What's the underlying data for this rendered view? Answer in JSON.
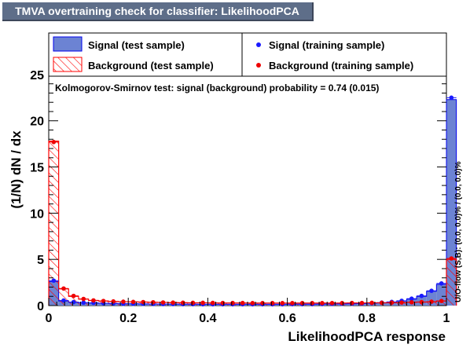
{
  "window": {
    "title": "TMVA overtraining check for classifier: LikelihoodPCA"
  },
  "chart_data": {
    "type": "bar",
    "title": "TMVA overtraining check for classifier: LikelihoodPCA",
    "xlabel": "LikelihoodPCA response",
    "ylabel": "(1/N) dN / dx",
    "xlim": [
      0,
      1
    ],
    "ylim": [
      0,
      29.5
    ],
    "xticks": [
      "0",
      "0.2",
      "0.4",
      "0.6",
      "0.8",
      "1"
    ],
    "yticks": [
      "0",
      "5",
      "10",
      "15",
      "20",
      "25"
    ],
    "bin_edges_start": 0,
    "bin_width": 0.025,
    "series": [
      {
        "name": "Signal (test sample)",
        "style": "filled histogram",
        "color": "#6c83d3",
        "values": [
          2.6,
          0.5,
          0.35,
          0.3,
          0.28,
          0.25,
          0.22,
          0.2,
          0.2,
          0.18,
          0.17,
          0.16,
          0.15,
          0.15,
          0.15,
          0.14,
          0.14,
          0.14,
          0.14,
          0.14,
          0.14,
          0.14,
          0.14,
          0.14,
          0.15,
          0.15,
          0.15,
          0.16,
          0.17,
          0.18,
          0.2,
          0.22,
          0.25,
          0.3,
          0.38,
          0.5,
          0.7,
          1.0,
          1.55,
          2.3,
          22.3
        ]
      },
      {
        "name": "Background (test sample)",
        "style": "hatched histogram",
        "color": "#ff0000",
        "values": [
          17.8,
          1.8,
          1.0,
          0.7,
          0.55,
          0.5,
          0.45,
          0.42,
          0.4,
          0.38,
          0.35,
          0.34,
          0.32,
          0.31,
          0.3,
          0.3,
          0.29,
          0.28,
          0.28,
          0.28,
          0.27,
          0.27,
          0.27,
          0.27,
          0.27,
          0.27,
          0.27,
          0.27,
          0.27,
          0.27,
          0.28,
          0.28,
          0.3,
          0.3,
          0.32,
          0.33,
          0.35,
          0.38,
          0.4,
          0.5,
          5.0
        ]
      },
      {
        "name": "Signal (training sample)",
        "style": "markers",
        "color": "#1a1aff",
        "values": [
          2.7,
          0.55,
          0.38,
          0.32,
          0.3,
          0.25,
          0.23,
          0.2,
          0.2,
          0.18,
          0.17,
          0.16,
          0.16,
          0.15,
          0.15,
          0.14,
          0.14,
          0.14,
          0.14,
          0.14,
          0.14,
          0.14,
          0.14,
          0.14,
          0.15,
          0.15,
          0.15,
          0.16,
          0.17,
          0.18,
          0.2,
          0.22,
          0.26,
          0.32,
          0.4,
          0.52,
          0.75,
          1.05,
          1.6,
          2.4,
          22.5
        ]
      },
      {
        "name": "Background (training sample)",
        "style": "markers",
        "color": "#ee0000",
        "values": [
          17.7,
          1.85,
          1.05,
          0.72,
          0.56,
          0.5,
          0.45,
          0.42,
          0.4,
          0.38,
          0.36,
          0.34,
          0.32,
          0.31,
          0.3,
          0.3,
          0.29,
          0.28,
          0.28,
          0.28,
          0.27,
          0.27,
          0.27,
          0.27,
          0.27,
          0.27,
          0.27,
          0.27,
          0.27,
          0.27,
          0.28,
          0.28,
          0.3,
          0.3,
          0.32,
          0.33,
          0.36,
          0.38,
          0.42,
          0.5,
          5.1
        ]
      }
    ],
    "annotation": "Kolmogorov-Smirnov test: signal (background) probability =  0.74 (0.015)",
    "side_label": "U/O-flow (S,B): (0.0, 0.0)% / (0.0, 0.0)%",
    "legend": [
      "Signal (test sample)",
      "Signal (training sample)",
      "Background (test sample)",
      "Background (training sample)"
    ],
    "legend_position": "top",
    "grid": false
  }
}
